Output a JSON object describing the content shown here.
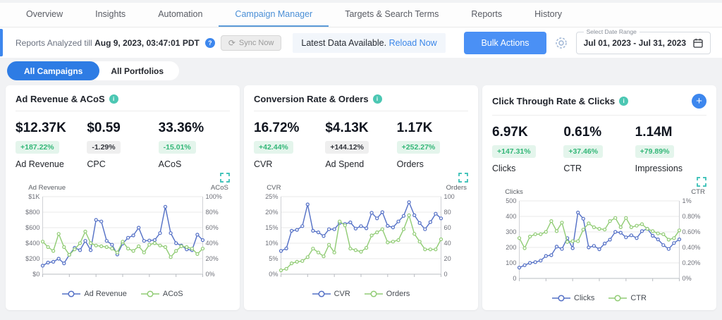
{
  "colors": {
    "accent_blue": "#3d87ee",
    "active_tab_blue": "#4a8fd6",
    "pill_blue": "#2e7ce4",
    "teal_info": "#4cc7b3",
    "teal_expand": "#2fbdb3",
    "series_blue": "#5470c6",
    "series_green": "#91cc75",
    "badge_green_text": "#34b778",
    "badge_green_bg": "#e4f5ec"
  },
  "nav": {
    "tabs": [
      {
        "label": "Overview",
        "active": false
      },
      {
        "label": "Insights",
        "active": false
      },
      {
        "label": "Automation",
        "active": false
      },
      {
        "label": "Campaign Manager",
        "active": true
      },
      {
        "label": "Targets & Search Terms",
        "active": false
      },
      {
        "label": "Reports",
        "active": false
      },
      {
        "label": "History",
        "active": false
      }
    ]
  },
  "toolbar": {
    "reports_prefix": "Reports Analyzed till",
    "reports_date": "Aug 9, 2023, 03:47:01 PDT",
    "help_icon": "question-mark",
    "sync_label": "Sync Now",
    "latest_text": "Latest Data Available.",
    "reload_label": "Reload Now",
    "bulk_label": "Bulk Actions",
    "date_range": {
      "label": "Select Date Range",
      "value": "Jul 01, 2023 - Jul 31, 2023"
    }
  },
  "filters": {
    "pills": [
      {
        "label": "All Campaigns",
        "active": true
      },
      {
        "label": "All Portfolios",
        "active": false
      }
    ]
  },
  "cards": [
    {
      "title": "Ad Revenue & ACoS",
      "has_add_button": false,
      "stats": [
        {
          "value": "$12.37K",
          "change": "+187.22%",
          "change_type": "positive",
          "label": "Ad Revenue"
        },
        {
          "value": "$0.59",
          "change": "-1.29%",
          "change_type": "neutral",
          "label": "CPC"
        },
        {
          "value": "33.36%",
          "change": "-15.01%",
          "change_type": "positive",
          "label": "ACoS"
        }
      ]
    },
    {
      "title": "Conversion Rate & Orders",
      "has_add_button": false,
      "stats": [
        {
          "value": "16.72%",
          "change": "+42.44%",
          "change_type": "positive",
          "label": "CVR"
        },
        {
          "value": "$4.13K",
          "change": "+144.12%",
          "change_type": "neutral",
          "label": "Ad Spend"
        },
        {
          "value": "1.17K",
          "change": "+252.27%",
          "change_type": "positive",
          "label": "Orders"
        }
      ]
    },
    {
      "title": "Click Through Rate & Clicks",
      "has_add_button": true,
      "stats": [
        {
          "value": "6.97K",
          "change": "+147.31%",
          "change_type": "positive",
          "label": "Clicks"
        },
        {
          "value": "0.61%",
          "change": "+37.46%",
          "change_type": "positive",
          "label": "CTR"
        },
        {
          "value": "1.14M",
          "change": "+79.89%",
          "change_type": "positive",
          "label": "Impressions"
        }
      ]
    }
  ],
  "chart_data": [
    {
      "type": "line",
      "title_left": "Ad Revenue",
      "title_right": "ACoS",
      "left_ticks": [
        "$1K",
        "$800",
        "$600",
        "$400",
        "$200",
        "$0"
      ],
      "right_ticks": [
        "100%",
        "80%",
        "60%",
        "40%",
        "20%",
        "0%"
      ],
      "left_range": [
        0,
        1000
      ],
      "right_range": [
        0,
        100
      ],
      "x": "Jul 01 - Jul 31, 2023 (daily)",
      "grid": true,
      "legend_position": "bottom",
      "series": [
        {
          "name": "Ad Revenue",
          "axis": "left",
          "color": "#5470c6",
          "values": [
            110,
            150,
            160,
            200,
            140,
            250,
            340,
            310,
            430,
            310,
            700,
            680,
            430,
            380,
            255,
            395,
            470,
            500,
            600,
            430,
            435,
            440,
            530,
            870,
            530,
            400,
            370,
            320,
            310,
            510,
            440
          ]
        },
        {
          "name": "ACoS",
          "axis": "right",
          "color": "#91cc75",
          "values": [
            42,
            35,
            30,
            52,
            35,
            25,
            32,
            40,
            55,
            40,
            37,
            36,
            35,
            33,
            28,
            42,
            33,
            30,
            36,
            28,
            38,
            40,
            37,
            35,
            22,
            30,
            36,
            35,
            33,
            26,
            33
          ]
        }
      ]
    },
    {
      "type": "line",
      "title_left": "CVR",
      "title_right": "Orders",
      "left_ticks": [
        "25%",
        "20%",
        "15%",
        "10%",
        "5%",
        "0%"
      ],
      "right_ticks": [
        "100",
        "80",
        "60",
        "40",
        "20",
        "0"
      ],
      "left_range": [
        0,
        25
      ],
      "right_range": [
        0,
        100
      ],
      "x": "Jul 01 - Jul 31, 2023 (daily)",
      "grid": true,
      "legend_position": "bottom",
      "series": [
        {
          "name": "CVR",
          "axis": "left",
          "color": "#5470c6",
          "values": [
            7.5,
            8.3,
            14,
            14.3,
            15.5,
            22.5,
            14,
            13.5,
            12.3,
            14.5,
            14.5,
            16.5,
            16.2,
            16.7,
            14.7,
            15.5,
            14.8,
            19.8,
            18,
            20,
            15.6,
            15.1,
            17,
            18.8,
            23.2,
            19,
            16.5,
            14.5,
            16.8,
            19.5,
            18
          ]
        },
        {
          "name": "Orders",
          "axis": "right",
          "color": "#91cc75",
          "values": [
            5,
            7,
            14,
            16,
            17,
            22,
            33,
            28,
            23,
            38,
            28,
            68,
            63,
            33,
            31,
            29,
            34,
            50,
            54,
            58,
            41,
            42,
            44,
            58,
            76,
            52,
            42,
            32,
            32,
            32,
            45
          ]
        }
      ]
    },
    {
      "type": "line",
      "title_left": "Clicks",
      "title_right": "CTR",
      "left_ticks": [
        "500",
        "400",
        "300",
        "200",
        "100",
        "0"
      ],
      "right_ticks": [
        "1%",
        "0.80%",
        "0.60%",
        "0.40%",
        "0.20%",
        "0%"
      ],
      "left_range": [
        0,
        500
      ],
      "right_range": [
        0,
        1
      ],
      "x": "Jul 01 - Jul 31, 2023 (daily)",
      "grid": true,
      "legend_position": "bottom",
      "series": [
        {
          "name": "Clicks",
          "axis": "left",
          "color": "#5470c6",
          "values": [
            70,
            85,
            100,
            105,
            115,
            145,
            150,
            205,
            190,
            260,
            195,
            425,
            385,
            200,
            210,
            188,
            225,
            250,
            300,
            295,
            265,
            278,
            260,
            305,
            320,
            275,
            252,
            215,
            190,
            228,
            252
          ]
        },
        {
          "name": "CTR",
          "axis": "right",
          "color": "#91cc75",
          "values": [
            0.52,
            0.39,
            0.54,
            0.57,
            0.57,
            0.6,
            0.74,
            0.61,
            0.72,
            0.47,
            0.48,
            0.48,
            0.63,
            0.71,
            0.66,
            0.64,
            0.63,
            0.74,
            0.78,
            0.66,
            0.78,
            0.66,
            0.68,
            0.7,
            0.64,
            0.61,
            0.58,
            0.57,
            0.5,
            0.52,
            0.62
          ]
        }
      ]
    }
  ]
}
